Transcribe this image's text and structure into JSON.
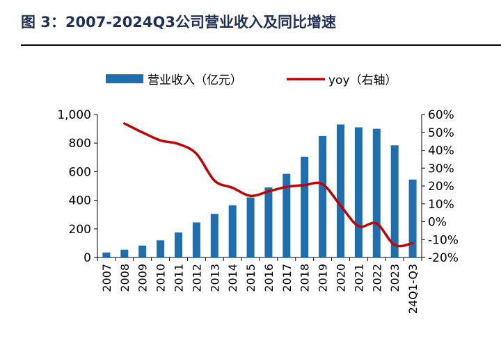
{
  "figure": {
    "title": "图 3：2007-2024Q3公司营业收入及同比增速"
  },
  "colors": {
    "bar": "#1f6fb0",
    "line": "#c00000",
    "title": "#1f2f55"
  },
  "chart_data": {
    "type": "bar+line",
    "categories": [
      "2007",
      "2008",
      "2009",
      "2010",
      "2011",
      "2012",
      "2013",
      "2014",
      "2015",
      "2016",
      "2017",
      "2018",
      "2019",
      "2020",
      "2021",
      "2022",
      "2023",
      "24Q1-Q3"
    ],
    "series": [
      {
        "name": "营业收入（亿元）",
        "type": "bar",
        "axis": "left",
        "values": [
          35,
          55,
          83,
          120,
          175,
          245,
          305,
          365,
          420,
          490,
          585,
          705,
          850,
          930,
          910,
          900,
          785,
          545
        ]
      },
      {
        "name": "yoy（右轴）",
        "type": "line",
        "axis": "right",
        "values": [
          null,
          0.55,
          0.5,
          0.455,
          0.435,
          0.38,
          0.23,
          0.19,
          0.145,
          0.17,
          0.195,
          0.205,
          0.21,
          0.09,
          -0.025,
          -0.01,
          -0.13,
          -0.12
        ]
      }
    ],
    "y_left": {
      "range": [
        0,
        1000
      ],
      "ticks": [
        0,
        200,
        400,
        600,
        800,
        1000
      ],
      "tick_labels": [
        "0",
        "200",
        "400",
        "600",
        "800",
        "1,000"
      ]
    },
    "y_right": {
      "range": [
        -0.2,
        0.6
      ],
      "ticks": [
        -0.2,
        -0.1,
        0,
        0.1,
        0.2,
        0.3,
        0.4,
        0.5,
        0.6
      ],
      "tick_labels": [
        "-20%",
        "-10%",
        "0%",
        "10%",
        "20%",
        "30%",
        "40%",
        "50%",
        "60%"
      ]
    },
    "legend": [
      "营业收入（亿元）",
      "yoy（右轴）"
    ],
    "legend_position": "top"
  }
}
